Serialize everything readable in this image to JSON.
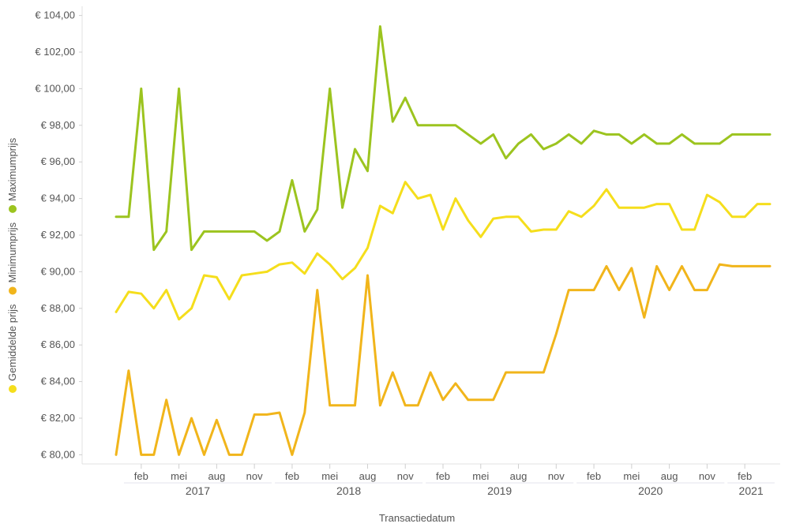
{
  "chart_data": {
    "type": "line",
    "xlabel": "Transactiedatum",
    "y_format": "€ {v}",
    "ylim": [
      79.5,
      104.5
    ],
    "yticks": [
      80,
      82,
      84,
      86,
      88,
      90,
      92,
      94,
      96,
      98,
      100,
      102,
      104
    ],
    "ytick_labels": [
      "€ 80,00",
      "€ 82,00",
      "€ 84,00",
      "€ 86,00",
      "€ 88,00",
      "€ 90,00",
      "€ 92,00",
      "€ 94,00",
      "€ 96,00",
      "€ 98,00",
      "€ 100,00",
      "€ 102,00",
      "€ 104,00"
    ],
    "x": [
      "2016-12",
      "2017-01",
      "2017-02",
      "2017-03",
      "2017-04",
      "2017-05",
      "2017-06",
      "2017-07",
      "2017-08",
      "2017-09",
      "2017-10",
      "2017-11",
      "2017-12",
      "2018-01",
      "2018-02",
      "2018-03",
      "2018-04",
      "2018-05",
      "2018-06",
      "2018-07",
      "2018-08",
      "2018-09",
      "2018-10",
      "2018-11",
      "2018-12",
      "2019-01",
      "2019-02",
      "2019-03",
      "2019-04",
      "2019-05",
      "2019-06",
      "2019-07",
      "2019-08",
      "2019-09",
      "2019-10",
      "2019-11",
      "2019-12",
      "2020-01",
      "2020-02",
      "2020-03",
      "2020-04",
      "2020-05",
      "2020-06",
      "2020-07",
      "2020-08",
      "2020-09",
      "2020-10",
      "2020-11",
      "2020-12",
      "2021-01",
      "2021-02",
      "2021-03",
      "2021-04"
    ],
    "month_ticks": [
      {
        "month": "2017-02",
        "label": "feb"
      },
      {
        "month": "2017-05",
        "label": "mei"
      },
      {
        "month": "2017-08",
        "label": "aug"
      },
      {
        "month": "2017-11",
        "label": "nov"
      },
      {
        "month": "2018-02",
        "label": "feb"
      },
      {
        "month": "2018-05",
        "label": "mei"
      },
      {
        "month": "2018-08",
        "label": "aug"
      },
      {
        "month": "2018-11",
        "label": "nov"
      },
      {
        "month": "2019-02",
        "label": "feb"
      },
      {
        "month": "2019-05",
        "label": "mei"
      },
      {
        "month": "2019-08",
        "label": "aug"
      },
      {
        "month": "2019-11",
        "label": "nov"
      },
      {
        "month": "2020-02",
        "label": "feb"
      },
      {
        "month": "2020-05",
        "label": "mei"
      },
      {
        "month": "2020-08",
        "label": "aug"
      },
      {
        "month": "2020-11",
        "label": "nov"
      },
      {
        "month": "2021-02",
        "label": "feb"
      }
    ],
    "year_groups": [
      {
        "label": "2017",
        "start": "2017-01",
        "end": "2017-12"
      },
      {
        "label": "2018",
        "start": "2018-01",
        "end": "2018-12"
      },
      {
        "label": "2019",
        "start": "2019-01",
        "end": "2019-12"
      },
      {
        "label": "2020",
        "start": "2020-01",
        "end": "2020-12"
      },
      {
        "label": "2021",
        "start": "2021-01",
        "end": "2021-04"
      }
    ],
    "legend_placement": "left-vertical",
    "grid": false,
    "series": [
      {
        "name": "Maximumprijs",
        "color": "#9cc41f",
        "values": [
          93,
          93,
          100,
          91.2,
          92.2,
          100,
          91.2,
          92.2,
          92.2,
          92.2,
          92.2,
          92.2,
          91.7,
          92.2,
          95,
          92.2,
          93.4,
          100,
          93.5,
          96.7,
          95.5,
          103.4,
          98.2,
          99.5,
          98,
          98,
          98,
          98,
          97.5,
          97,
          97.5,
          96.2,
          97,
          97.5,
          96.7,
          97,
          97.5,
          97,
          97.7,
          97.5,
          97.5,
          97,
          97.5,
          97,
          97,
          97.5,
          97,
          97,
          97,
          97.5,
          97.5,
          97.5,
          97.5
        ]
      },
      {
        "name": "Minimumprijs",
        "color": "#f1b51b",
        "values": [
          80,
          84.6,
          80,
          80,
          83,
          80,
          82,
          80,
          81.9,
          80,
          80,
          82.2,
          82.2,
          82.3,
          80,
          82.3,
          89,
          82.7,
          82.7,
          82.7,
          89.8,
          82.7,
          84.5,
          82.7,
          82.7,
          84.5,
          83,
          83.9,
          83,
          83,
          83,
          84.5,
          84.5,
          84.5,
          84.5,
          86.6,
          89,
          89,
          89,
          90.3,
          89,
          90.2,
          87.5,
          90.3,
          89,
          90.3,
          89,
          89,
          90.4,
          90.3,
          90.3,
          90.3,
          90.3
        ]
      },
      {
        "name": "Gemiddelde prijs",
        "color": "#f5de1c",
        "values": [
          87.8,
          88.9,
          88.8,
          88,
          89,
          87.4,
          88,
          89.8,
          89.7,
          88.5,
          89.8,
          89.9,
          90,
          90.4,
          90.5,
          89.9,
          91,
          90.4,
          89.6,
          90.2,
          91.3,
          93.6,
          93.2,
          94.9,
          94,
          94.2,
          92.3,
          94,
          92.8,
          91.9,
          92.9,
          93,
          93,
          92.2,
          92.3,
          92.3,
          93.3,
          93,
          93.6,
          94.5,
          93.5,
          93.5,
          93.5,
          93.7,
          93.7,
          92.3,
          92.3,
          94.2,
          93.8,
          93,
          93,
          93.7,
          93.7
        ]
      }
    ]
  }
}
